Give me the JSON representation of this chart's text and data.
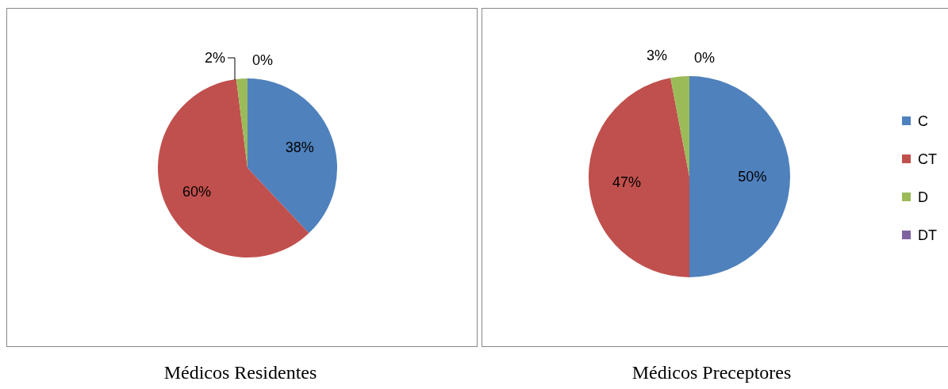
{
  "chart_data": [
    {
      "type": "pie",
      "title": "Médicos Residentes",
      "categories": [
        null,
        null,
        null,
        null
      ],
      "values": [
        38,
        60,
        2,
        0
      ],
      "value_labels": [
        "38%",
        "60%",
        "2%",
        "0%"
      ],
      "colors": [
        "#4f81bd",
        "#c0504d",
        "#9bbb59",
        "#8064a2"
      ],
      "legend": false
    },
    {
      "type": "pie",
      "title": "Médicos Preceptores",
      "categories": [
        "C",
        "CT",
        "D",
        "DT"
      ],
      "values": [
        50,
        47,
        3,
        0
      ],
      "value_labels": [
        "50%",
        "47%",
        "3%",
        "0%"
      ],
      "colors": [
        "#4f81bd",
        "#c0504d",
        "#9bbb59",
        "#8064a2"
      ],
      "legend": "right"
    }
  ]
}
